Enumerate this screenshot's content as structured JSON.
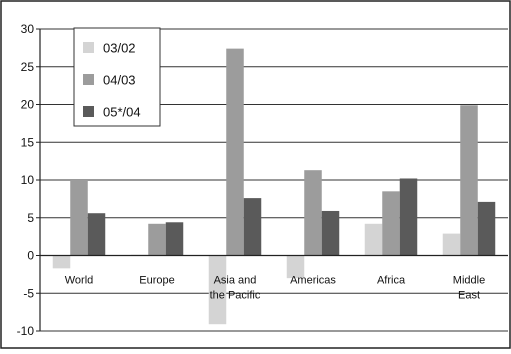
{
  "chart_data": {
    "type": "bar",
    "categories": [
      "World",
      "Europe",
      "Asia and the Pacific",
      "Americas",
      "Africa",
      "Middle East"
    ],
    "category_lines": [
      [
        "World"
      ],
      [
        "Europe"
      ],
      [
        "Asia and",
        "the Pacific"
      ],
      [
        "Americas"
      ],
      [
        "Africa"
      ],
      [
        "Middle",
        "East"
      ]
    ],
    "series": [
      {
        "name": "03/02",
        "values": [
          -1.7,
          0.1,
          -9.1,
          -3.0,
          4.2,
          2.9
        ],
        "color": "#d4d4d4"
      },
      {
        "name": "04/03",
        "values": [
          10.0,
          4.2,
          27.4,
          11.3,
          8.5,
          19.9
        ],
        "color": "#9c9c9c"
      },
      {
        "name": "05*/04",
        "values": [
          5.6,
          4.4,
          7.6,
          5.9,
          10.2,
          7.1
        ],
        "color": "#5a5a5a"
      }
    ],
    "ylim": [
      -10,
      30
    ],
    "yticks": [
      -10,
      -5,
      0,
      5,
      10,
      15,
      20,
      25,
      30
    ],
    "ytick_labels": [
      "-10",
      "-5",
      "0",
      "5",
      "10",
      "15",
      "20",
      "25",
      "30"
    ],
    "grid": true,
    "legend_position": "top-left"
  }
}
